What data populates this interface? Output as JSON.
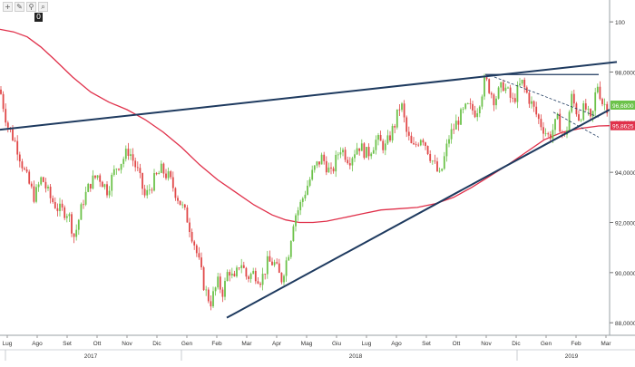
{
  "toolbar": {
    "icons": [
      "crosshair-icon",
      "pencil-icon",
      "magnet-icon",
      "zoom-icon"
    ],
    "glyphs": [
      "+",
      "✎",
      "⚲",
      "⌕"
    ],
    "badge": "0"
  },
  "chart_data": {
    "type": "candlestick",
    "title": "",
    "ylim": [
      87.5,
      100.8
    ],
    "y_ticks": [
      88,
      90,
      92,
      94,
      96,
      98,
      100
    ],
    "y_tick_labels": [
      "88,0000",
      "90,0000",
      "92,0000",
      "94,0000",
      "96,0000",
      "98,0000",
      "100"
    ],
    "x_month_labels": [
      "Lug",
      "Ago",
      "Set",
      "Ott",
      "Nov",
      "Dic",
      "Gen",
      "Feb",
      "Mar",
      "Apr",
      "Mag",
      "Giu",
      "Lug",
      "Ago",
      "Set",
      "Ott",
      "Nov",
      "Dic",
      "Gen",
      "Feb",
      "Mar"
    ],
    "x_year_labels": [
      "2017",
      "2018",
      "2019"
    ],
    "last_price": "96,6800",
    "moving_average_value": "95,8625",
    "up_color": "#6cc24a",
    "down_color": "#e04848",
    "ma_color": "#e0304a",
    "trendline_color": "#1e3a5f",
    "price_path": [
      [
        0,
        97.3
      ],
      [
        8,
        95.9
      ],
      [
        18,
        95.1
      ],
      [
        28,
        93.9
      ],
      [
        38,
        93.0
      ],
      [
        46,
        93.8
      ],
      [
        55,
        93.0
      ],
      [
        65,
        92.5
      ],
      [
        75,
        92.4
      ],
      [
        82,
        91.4
      ],
      [
        92,
        92.9
      ],
      [
        100,
        93.6
      ],
      [
        108,
        93.9
      ],
      [
        118,
        93.3
      ],
      [
        128,
        94.2
      ],
      [
        135,
        94.5
      ],
      [
        142,
        94.9
      ],
      [
        152,
        94.0
      ],
      [
        160,
        93.0
      ],
      [
        170,
        93.7
      ],
      [
        178,
        94.1
      ],
      [
        186,
        93.8
      ],
      [
        196,
        93.0
      ],
      [
        206,
        92.2
      ],
      [
        214,
        91.2
      ],
      [
        220,
        90.3
      ],
      [
        226,
        89.3
      ],
      [
        232,
        88.8
      ],
      [
        240,
        89.6
      ],
      [
        246,
        89.2
      ],
      [
        252,
        90.2
      ],
      [
        258,
        89.6
      ],
      [
        265,
        90.5
      ],
      [
        272,
        89.8
      ],
      [
        280,
        90.0
      ],
      [
        288,
        89.7
      ],
      [
        295,
        90.4
      ],
      [
        302,
        90.4
      ],
      [
        310,
        89.7
      ],
      [
        318,
        90.8
      ],
      [
        324,
        92.2
      ],
      [
        330,
        92.6
      ],
      [
        338,
        93.4
      ],
      [
        346,
        94.1
      ],
      [
        355,
        94.6
      ],
      [
        365,
        93.9
      ],
      [
        375,
        95.0
      ],
      [
        385,
        94.5
      ],
      [
        395,
        95.1
      ],
      [
        405,
        94.7
      ],
      [
        415,
        95.3
      ],
      [
        425,
        95.0
      ],
      [
        435,
        95.9
      ],
      [
        442,
        96.8
      ],
      [
        448,
        95.6
      ],
      [
        455,
        94.9
      ],
      [
        465,
        95.5
      ],
      [
        475,
        94.6
      ],
      [
        485,
        93.8
      ],
      [
        495,
        95.4
      ],
      [
        505,
        96.1
      ],
      [
        515,
        96.6
      ],
      [
        525,
        96.4
      ],
      [
        535,
        97.7
      ],
      [
        545,
        96.9
      ],
      [
        555,
        97.5
      ],
      [
        565,
        96.8
      ],
      [
        575,
        97.6
      ],
      [
        585,
        96.8
      ],
      [
        595,
        96.0
      ],
      [
        605,
        95.4
      ],
      [
        615,
        96.1
      ],
      [
        623,
        95.3
      ],
      [
        630,
        97.0
      ],
      [
        638,
        96.2
      ],
      [
        645,
        96.6
      ],
      [
        652,
        95.9
      ],
      [
        658,
        97.6
      ],
      [
        664,
        96.8
      ],
      [
        670,
        96.6
      ]
    ],
    "ma_path": [
      [
        0,
        99.7
      ],
      [
        15,
        99.6
      ],
      [
        30,
        99.4
      ],
      [
        45,
        99.0
      ],
      [
        60,
        98.5
      ],
      [
        80,
        97.8
      ],
      [
        100,
        97.2
      ],
      [
        120,
        96.8
      ],
      [
        140,
        96.5
      ],
      [
        160,
        96.1
      ],
      [
        180,
        95.6
      ],
      [
        200,
        95.0
      ],
      [
        220,
        94.3
      ],
      [
        240,
        93.7
      ],
      [
        260,
        93.2
      ],
      [
        280,
        92.7
      ],
      [
        300,
        92.3
      ],
      [
        315,
        92.1
      ],
      [
        330,
        92.0
      ],
      [
        345,
        92.0
      ],
      [
        360,
        92.05
      ],
      [
        380,
        92.2
      ],
      [
        400,
        92.35
      ],
      [
        420,
        92.5
      ],
      [
        440,
        92.55
      ],
      [
        460,
        92.6
      ],
      [
        480,
        92.75
      ],
      [
        500,
        93.0
      ],
      [
        520,
        93.4
      ],
      [
        540,
        93.85
      ],
      [
        560,
        94.3
      ],
      [
        580,
        94.8
      ],
      [
        600,
        95.3
      ],
      [
        620,
        95.6
      ],
      [
        640,
        95.75
      ],
      [
        660,
        95.85
      ],
      [
        672,
        95.86
      ]
    ],
    "trendlines": [
      {
        "kind": "upper-channel",
        "style": "solid",
        "from": [
          0,
          95.7
        ],
        "to": [
          680,
          98.4
        ]
      },
      {
        "kind": "rising-support",
        "style": "solid",
        "from": [
          250,
          88.2
        ],
        "to": [
          672,
          96.5
        ]
      },
      {
        "kind": "resistance",
        "style": "solid",
        "from": [
          535,
          97.9
        ],
        "to": [
          660,
          97.9
        ]
      },
      {
        "kind": "falling-channel",
        "style": "dashed",
        "from": [
          545,
          97.8
        ],
        "to": [
          660,
          96.2
        ]
      },
      {
        "kind": "falling-channel-lower",
        "style": "dashed",
        "from": [
          610,
          96.4
        ],
        "to": [
          660,
          95.4
        ]
      }
    ]
  }
}
